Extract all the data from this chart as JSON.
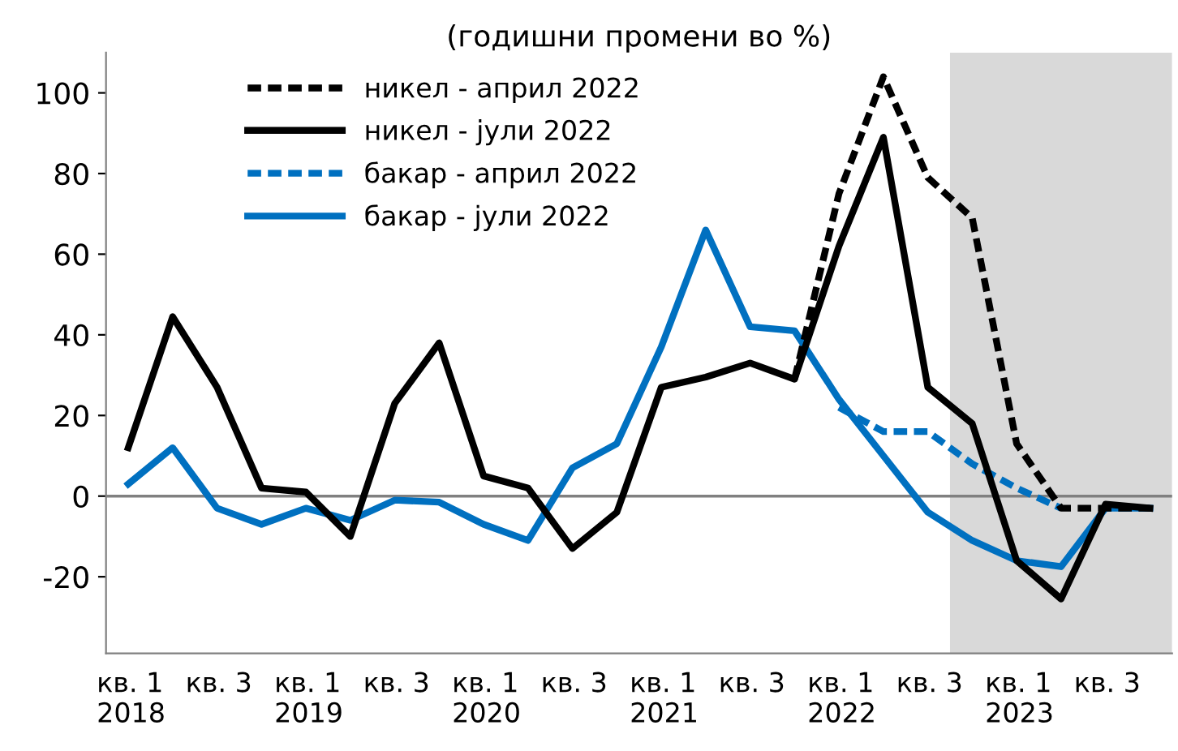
{
  "chart_data": {
    "type": "line",
    "title": "(годишни промени во %)",
    "categories": [
      "кв. 1\n2018",
      null,
      "кв. 3",
      null,
      "кв. 1\n2019",
      null,
      "кв. 3",
      null,
      "кв. 1\n2020",
      null,
      "кв. 3",
      null,
      "кв. 1\n2021",
      null,
      "кв. 3",
      null,
      "кв. 1\n2022",
      null,
      "кв. 3",
      null,
      "кв. 1\n2023",
      null,
      "кв. 3",
      null
    ],
    "series": [
      {
        "name": "никел - април 2022",
        "color": "#000000",
        "line_style": "dashed",
        "values": [
          null,
          null,
          null,
          null,
          null,
          null,
          null,
          null,
          null,
          null,
          null,
          null,
          null,
          null,
          null,
          29,
          75,
          104,
          79,
          69,
          13,
          -3,
          -3,
          -3
        ]
      },
      {
        "name": "никел - јули 2022",
        "color": "#000000",
        "line_style": "solid",
        "values": [
          12,
          44.5,
          27,
          2,
          1,
          -10,
          23,
          38,
          5,
          2,
          -13,
          -4,
          27,
          29.5,
          33,
          29,
          62,
          89,
          27,
          18,
          -16,
          -25.5,
          -2,
          -3
        ]
      },
      {
        "name": "бакар - април 2022",
        "color": "#0070c0",
        "line_style": "dashed",
        "values": [
          null,
          null,
          null,
          null,
          null,
          null,
          null,
          null,
          null,
          null,
          null,
          null,
          null,
          null,
          null,
          null,
          22,
          16,
          16,
          8,
          2,
          -3,
          null,
          null
        ]
      },
      {
        "name": "бакар - јули 2022",
        "color": "#0070c0",
        "line_style": "solid",
        "values": [
          3,
          12,
          -3,
          -7,
          -3,
          -6,
          -1,
          -1.5,
          -7,
          -11,
          7,
          13,
          37,
          66,
          42,
          41,
          24,
          10,
          -4,
          -11,
          -16,
          -17.5,
          -3,
          -3
        ]
      }
    ],
    "ylim": [
      -39,
      110
    ],
    "yticks": [
      -20,
      0,
      20,
      40,
      60,
      80,
      100
    ],
    "ref_lines": [
      {
        "axis": "y",
        "value": 0,
        "color": "#808080"
      }
    ],
    "grid": false,
    "legend": "top left",
    "marker": "none"
  }
}
